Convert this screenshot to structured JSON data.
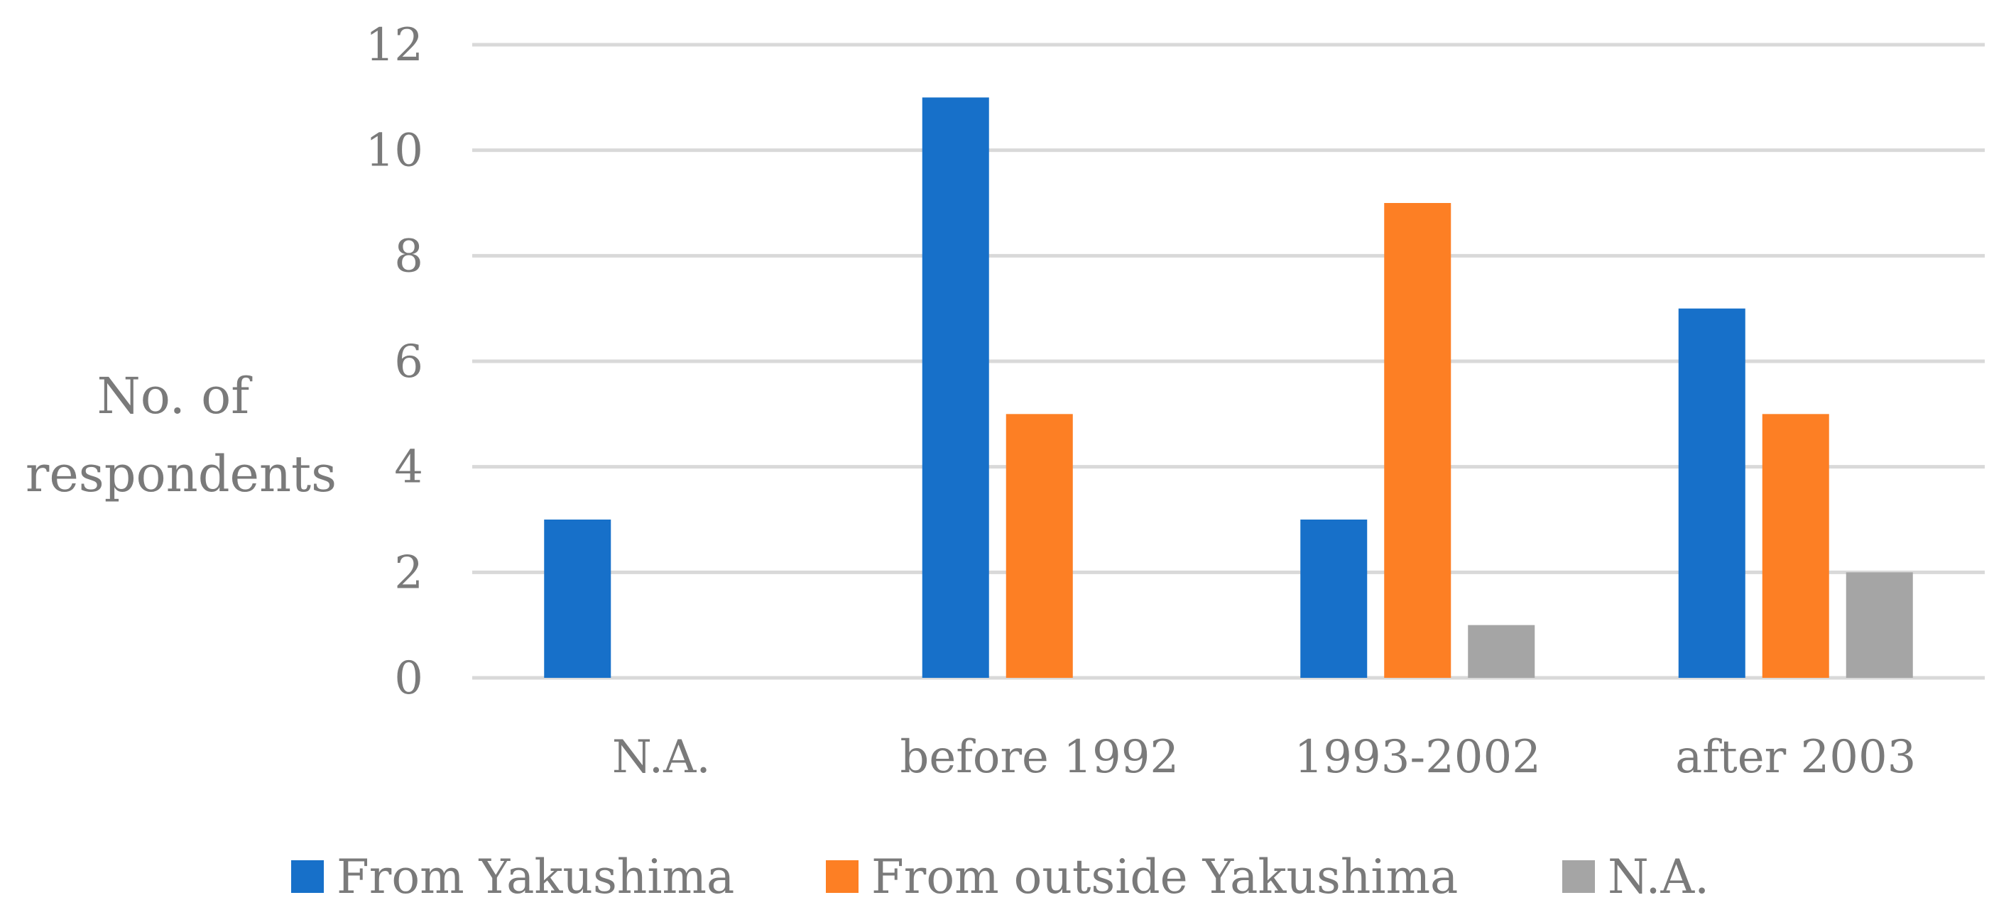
{
  "chart_data": {
    "type": "bar",
    "ylabel": "No. of respondents",
    "ylabel_lines": [
      "No. of",
      "respondents"
    ],
    "categories": [
      "N.A.",
      "before 1992",
      "1993-2002",
      "after 2003"
    ],
    "series": [
      {
        "name": "From Yakushima",
        "color": "#1770c9",
        "values": [
          3,
          11,
          3,
          7
        ]
      },
      {
        "name": "From outside Yakushima",
        "color": "#fd7f24",
        "values": [
          0,
          5,
          9,
          5
        ]
      },
      {
        "name": "N.A.",
        "color": "#a5a5a5",
        "values": [
          0,
          0,
          1,
          2
        ]
      }
    ],
    "ylim": [
      0,
      12
    ],
    "yticks": [
      0,
      2,
      4,
      6,
      8,
      10,
      12
    ],
    "grid": true,
    "legend_position": "bottom"
  }
}
